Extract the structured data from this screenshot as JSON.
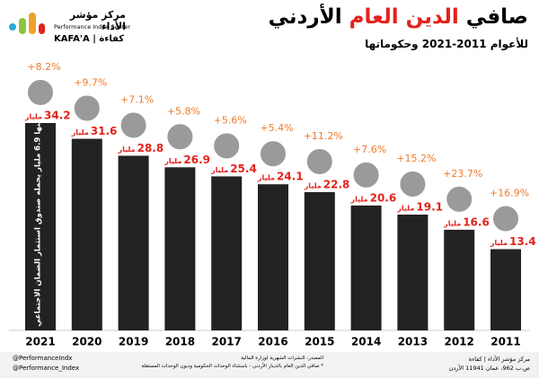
{
  "chart_data": {
    "type": "bar",
    "title_start": "صافي",
    "title_highlight": "الدين العام",
    "title_end": "الأردني",
    "subtitle": "للأعوام 2011-2021 وحكوماتها",
    "categories": [
      "2021",
      "2020",
      "2019",
      "2018",
      "2017",
      "2016",
      "2015",
      "2014",
      "2013",
      "2012",
      "2011"
    ],
    "values": [
      34.2,
      31.6,
      28.8,
      26.9,
      25.4,
      24.1,
      22.8,
      20.6,
      19.1,
      16.6,
      13.4
    ],
    "unit_label": "مليار",
    "color": "#222222",
    "value_color": "#e3221b",
    "growth": {
      "color": "#f07a28",
      "values": [
        8.2,
        9.7,
        7.1,
        5.8,
        5.6,
        5.4,
        11.2,
        7.6,
        15.2,
        23.7,
        16.9
      ],
      "value_labels": [
        "+8.2%",
        "+9.7%",
        "+7.1%",
        "+5.8%",
        "+5.6%",
        "+5.4%",
        "+11.2%",
        "+7.6%",
        "+15.2%",
        "+23.7%",
        "+16.9%"
      ]
    },
    "bar_annotation": "منها 6.9 مليار يحمله صندوق استثمار الضمان الاجتماعي"
  },
  "logo": {
    "name_ar": "مركز مؤشر الأداء",
    "name_en": "Performance Index Center",
    "brand": "KAFA'A | كفاءة"
  },
  "footer": {
    "twitter": "@PerformanceIndx",
    "facebook": "@Performance_Index",
    "source": "المصدر: النشرات الشهرية لوزارة المالية",
    "note": "* صافي الدين العام بالدينار الأردني - باستثناء الوحدات الحكومية وديون الوحدات المستقلة",
    "org": "مركز مؤشر الأداء | كفاءة",
    "address": "ص.ب 962، عمان 11941 الأردن"
  }
}
